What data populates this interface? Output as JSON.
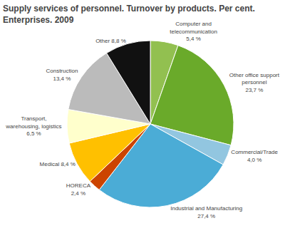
{
  "chart_data": {
    "type": "pie",
    "title": "Supply services of personnel. Turnover by products. Per cent.\nEnterprises. 2009",
    "categories": [
      "Computer and\ntelecommunication\n5,4 %",
      "Other office support\npersonnel\n23,7 %",
      "Commercial/Trade\n4,0 %",
      "Industrial and Manufacturing\n27,4 %",
      "HORECA\n2,4 %",
      "Medical 8,4 %",
      "Transport,\nwarehousing, logistics\n6,5 %",
      "Construction\n13,4 %",
      "Other 8,8 %"
    ],
    "values": [
      5.4,
      23.7,
      4.0,
      27.4,
      2.4,
      8.4,
      6.5,
      13.4,
      8.8
    ],
    "colors": [
      "#92c050",
      "#6aaa2a",
      "#92c6e0",
      "#4bacd6",
      "#cc4400",
      "#ffc000",
      "#ffffcc",
      "#bbbbbb",
      "#111111"
    ],
    "data_labels": true
  }
}
